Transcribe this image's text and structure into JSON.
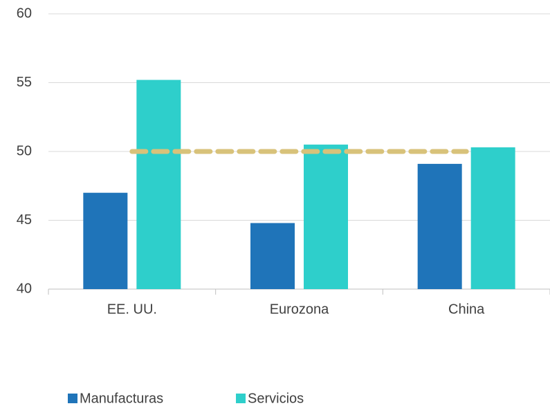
{
  "chart_data": {
    "type": "bar",
    "categories": [
      "EE. UU.",
      "Eurozona",
      "China"
    ],
    "series": [
      {
        "name": "Manufacturas",
        "color": "#1f74b9",
        "values": [
          47.0,
          44.8,
          49.1
        ]
      },
      {
        "name": "Servicios",
        "color": "#2ecfcb",
        "values": [
          55.2,
          50.5,
          50.3
        ]
      }
    ],
    "reference_line": {
      "value": 50,
      "color": "#d8c27a"
    },
    "ylim": [
      40,
      60
    ],
    "yticks": [
      40,
      45,
      50,
      55,
      60
    ],
    "grid": true
  }
}
